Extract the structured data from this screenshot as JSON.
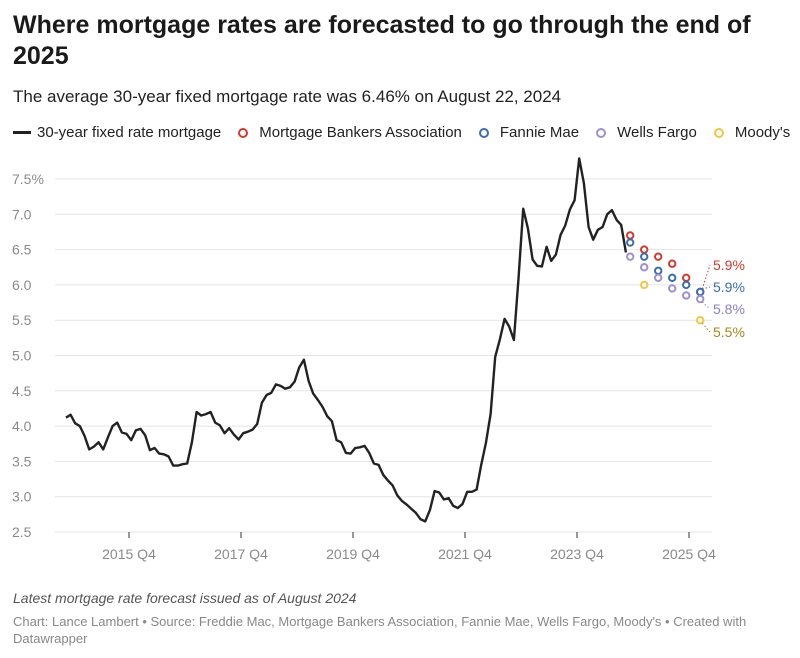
{
  "header": {
    "title": "Where mortgage rates are forecasted to go through the end of 2025",
    "subtitle": "The average 30-year fixed mortgage rate was 6.46% on August 22, 2024"
  },
  "legend": [
    {
      "label": "30-year fixed rate mortgage",
      "color": "#222222",
      "kind": "line"
    },
    {
      "label": "Mortgage Bankers Association",
      "color": "#d13b2e",
      "kind": "dot"
    },
    {
      "label": "Fannie Mae",
      "color": "#3b6db5",
      "kind": "dot"
    },
    {
      "label": "Wells Fargo",
      "color": "#9d91d1",
      "kind": "dot"
    },
    {
      "label": "Moody's",
      "color": "#f6c445",
      "kind": "dot"
    }
  ],
  "chart_data": {
    "type": "line",
    "title": "Where mortgage rates are forecasted to go through the end of 2025",
    "ylim": [
      2.5,
      7.8
    ],
    "y_ticks": [
      "2.5",
      "3.0",
      "3.5",
      "4.0",
      "4.5",
      "5.0",
      "5.5",
      "6.0",
      "6.5",
      "7.0",
      "7.5%"
    ],
    "x_ticks": [
      "2015 Q4",
      "2017 Q4",
      "2019 Q4",
      "2021 Q4",
      "2023 Q4",
      "2025 Q4"
    ],
    "grid": true,
    "legend_position": "top",
    "history": {
      "name": "30-year fixed rate mortgage",
      "x": [
        "2014-08",
        "2014-09",
        "2014-10",
        "2014-11",
        "2014-12",
        "2015-01",
        "2015-02",
        "2015-03",
        "2015-04",
        "2015-05",
        "2015-06",
        "2015-07",
        "2015-08",
        "2015-09",
        "2015-10",
        "2015-11",
        "2015-12",
        "2016-01",
        "2016-02",
        "2016-03",
        "2016-04",
        "2016-05",
        "2016-06",
        "2016-07",
        "2016-08",
        "2016-09",
        "2016-10",
        "2016-11",
        "2016-12",
        "2017-01",
        "2017-02",
        "2017-03",
        "2017-04",
        "2017-05",
        "2017-06",
        "2017-07",
        "2017-08",
        "2017-09",
        "2017-10",
        "2017-11",
        "2017-12",
        "2018-01",
        "2018-02",
        "2018-03",
        "2018-04",
        "2018-05",
        "2018-06",
        "2018-07",
        "2018-08",
        "2018-09",
        "2018-10",
        "2018-11",
        "2018-12",
        "2019-01",
        "2019-02",
        "2019-03",
        "2019-04",
        "2019-05",
        "2019-06",
        "2019-07",
        "2019-08",
        "2019-09",
        "2019-10",
        "2019-11",
        "2019-12",
        "2020-01",
        "2020-02",
        "2020-03",
        "2020-04",
        "2020-05",
        "2020-06",
        "2020-07",
        "2020-08",
        "2020-09",
        "2020-10",
        "2020-11",
        "2020-12",
        "2021-01",
        "2021-02",
        "2021-03",
        "2021-04",
        "2021-05",
        "2021-06",
        "2021-07",
        "2021-08",
        "2021-09",
        "2021-10",
        "2021-11",
        "2021-12",
        "2022-01",
        "2022-02",
        "2022-03",
        "2022-04",
        "2022-05",
        "2022-06",
        "2022-07",
        "2022-08",
        "2022-09",
        "2022-10",
        "2022-11",
        "2022-12",
        "2023-01",
        "2023-02",
        "2023-03",
        "2023-04",
        "2023-05",
        "2023-06",
        "2023-07",
        "2023-08",
        "2023-09",
        "2023-10",
        "2023-11",
        "2023-12",
        "2024-01",
        "2024-02",
        "2024-03",
        "2024-04",
        "2024-05",
        "2024-06",
        "2024-07",
        "2024-08"
      ],
      "y": [
        4.12,
        4.16,
        4.04,
        4.0,
        3.86,
        3.67,
        3.71,
        3.77,
        3.67,
        3.84,
        4.0,
        4.05,
        3.91,
        3.89,
        3.8,
        3.94,
        3.96,
        3.87,
        3.66,
        3.69,
        3.61,
        3.6,
        3.57,
        3.44,
        3.44,
        3.46,
        3.47,
        3.77,
        4.2,
        4.15,
        4.17,
        4.2,
        4.05,
        4.01,
        3.9,
        3.97,
        3.88,
        3.81,
        3.9,
        3.92,
        3.95,
        4.03,
        4.33,
        4.44,
        4.47,
        4.59,
        4.57,
        4.53,
        4.55,
        4.63,
        4.83,
        4.94,
        4.64,
        4.46,
        4.37,
        4.27,
        4.14,
        4.07,
        3.8,
        3.77,
        3.62,
        3.61,
        3.69,
        3.7,
        3.72,
        3.62,
        3.47,
        3.45,
        3.31,
        3.23,
        3.16,
        3.02,
        2.94,
        2.89,
        2.83,
        2.77,
        2.68,
        2.65,
        2.81,
        3.08,
        3.06,
        2.96,
        2.98,
        2.87,
        2.84,
        2.9,
        3.07,
        3.07,
        3.1,
        3.45,
        3.76,
        4.17,
        4.98,
        5.23,
        5.52,
        5.41,
        5.22,
        6.11,
        7.08,
        6.8,
        6.36,
        6.27,
        6.26,
        6.54,
        6.34,
        6.43,
        6.71,
        6.84,
        7.07,
        7.2,
        7.79,
        7.44,
        6.82,
        6.64,
        6.78,
        6.82,
        7.0,
        7.06,
        6.92,
        6.85,
        6.46
      ]
    },
    "forecast_quarters": [
      "2024 Q3",
      "2024 Q4",
      "2025 Q1",
      "2025 Q2",
      "2025 Q3",
      "2025 Q4"
    ],
    "series": [
      {
        "name": "Mortgage Bankers Association",
        "color": "#d13b2e",
        "label_color": "#d13b2e",
        "values": [
          6.7,
          6.5,
          6.4,
          6.3,
          6.1,
          5.9
        ],
        "end_label": "5.9%"
      },
      {
        "name": "Fannie Mae",
        "color": "#3b6db5",
        "label_color": "#3b6db5",
        "values": [
          6.6,
          6.4,
          6.2,
          6.1,
          6.0,
          5.9
        ],
        "end_label": "5.9%"
      },
      {
        "name": "Wells Fargo",
        "color": "#9d91d1",
        "label_color": "#8b7fc6",
        "values": [
          6.4,
          6.25,
          6.1,
          5.95,
          5.85,
          5.8
        ],
        "end_label": "5.8%"
      },
      {
        "name": "Moody's",
        "color": "#f6c445",
        "label_color": "#a5871c",
        "values": [
          null,
          6.0,
          null,
          null,
          null,
          5.5
        ],
        "end_label": "5.5%"
      }
    ]
  },
  "footer": {
    "note": "Latest mortgage rate forecast issued as of August 2024",
    "source": "Chart: Lance Lambert • Source: Freddie Mac, Mortgage Bankers Association, Fannie Mae, Wells Fargo, Moody's • Created with Datawrapper"
  }
}
